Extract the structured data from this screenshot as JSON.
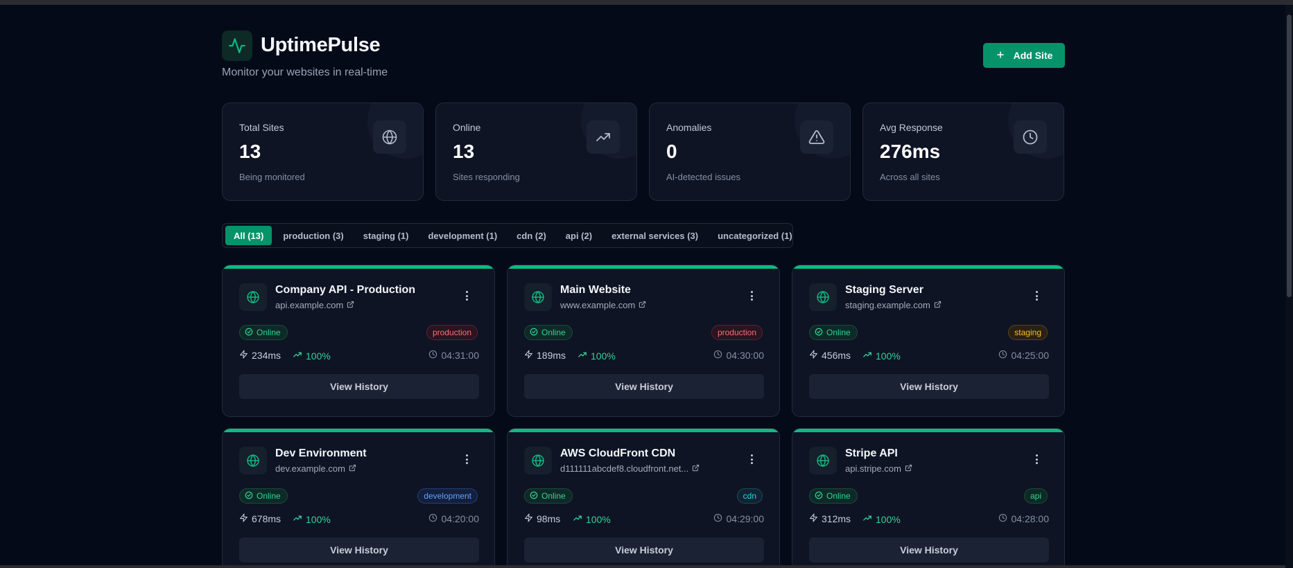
{
  "app": {
    "title": "UptimePulse",
    "subtitle": "Monitor your websites in real-time",
    "add_button_label": "Add Site",
    "accent_color": "#07936a"
  },
  "stats": [
    {
      "label": "Total Sites",
      "value": "13",
      "desc": "Being monitored",
      "icon": "globe-icon"
    },
    {
      "label": "Online",
      "value": "13",
      "desc": "Sites responding",
      "icon": "trending-up-icon"
    },
    {
      "label": "Anomalies",
      "value": "0",
      "desc": "AI-detected issues",
      "icon": "alert-triangle-icon"
    },
    {
      "label": "Avg Response",
      "value": "276ms",
      "desc": "Across all sites",
      "icon": "clock-icon"
    }
  ],
  "filters": [
    {
      "label": "All (13)",
      "active": true
    },
    {
      "label": "production (3)",
      "active": false
    },
    {
      "label": "staging (1)",
      "active": false
    },
    {
      "label": "development (1)",
      "active": false
    },
    {
      "label": "cdn (2)",
      "active": false
    },
    {
      "label": "api (2)",
      "active": false
    },
    {
      "label": "external services (3)",
      "active": false
    },
    {
      "label": "uncategorized (1)",
      "active": false
    }
  ],
  "sites": [
    {
      "name": "Company API - Production",
      "url": "api.example.com",
      "status": "Online",
      "tag": "production",
      "response": "234ms",
      "uptime": "100%",
      "time": "04:31:00",
      "button": "View History"
    },
    {
      "name": "Main Website",
      "url": "www.example.com",
      "status": "Online",
      "tag": "production",
      "response": "189ms",
      "uptime": "100%",
      "time": "04:30:00",
      "button": "View History"
    },
    {
      "name": "Staging Server",
      "url": "staging.example.com",
      "status": "Online",
      "tag": "staging",
      "response": "456ms",
      "uptime": "100%",
      "time": "04:25:00",
      "button": "View History"
    },
    {
      "name": "Dev Environment",
      "url": "dev.example.com",
      "status": "Online",
      "tag": "development",
      "response": "678ms",
      "uptime": "100%",
      "time": "04:20:00",
      "button": "View History"
    },
    {
      "name": "AWS CloudFront CDN",
      "url": "d111111abcdef8.cloudfront.net...",
      "status": "Online",
      "tag": "cdn",
      "response": "98ms",
      "uptime": "100%",
      "time": "04:29:00",
      "button": "View History"
    },
    {
      "name": "Stripe API",
      "url": "api.stripe.com",
      "status": "Online",
      "tag": "api",
      "response": "312ms",
      "uptime": "100%",
      "time": "04:28:00",
      "button": "View History"
    }
  ]
}
